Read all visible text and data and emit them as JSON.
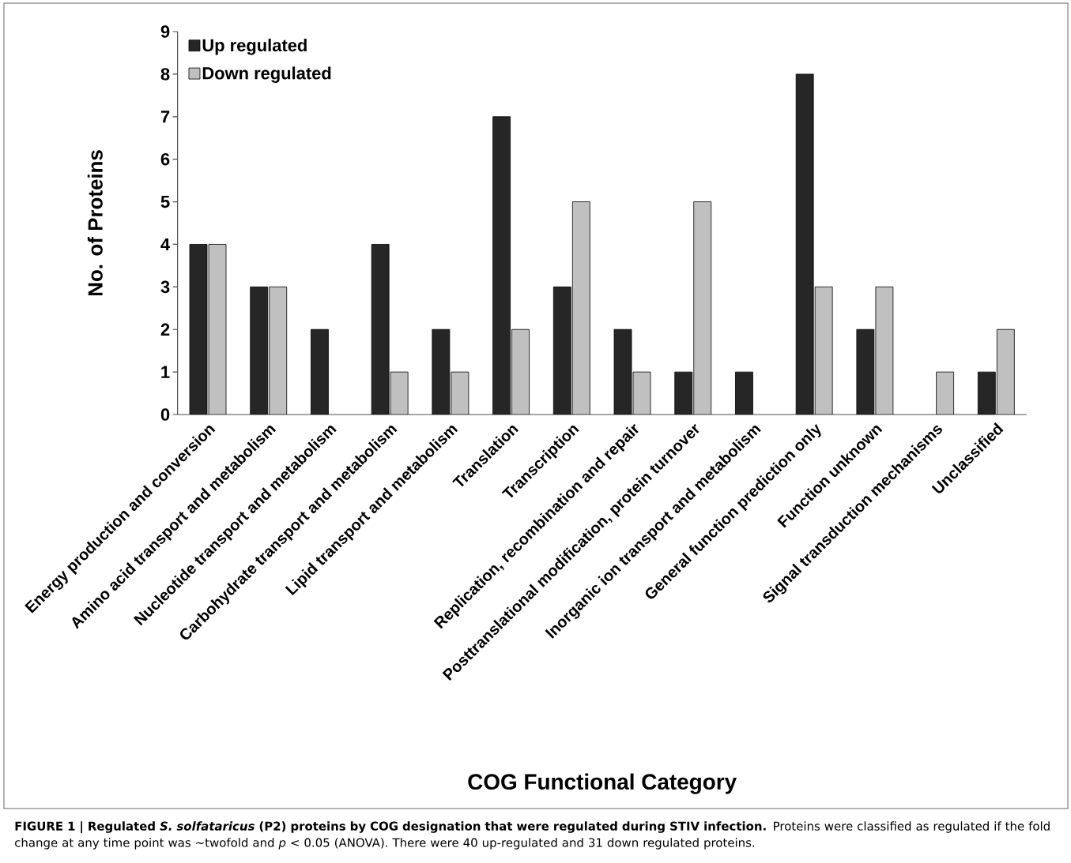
{
  "chart_data": {
    "type": "bar",
    "xlabel": "COG Functional Category",
    "ylabel": "No. of Proteins",
    "categories": [
      "Energy production and conversion",
      "Amino acid transport and metabolism",
      "Nucleotide transport and metabolism",
      "Carbohydrate transport and metabolism",
      "Lipid transport and metabolism",
      "Translation",
      "Transcription",
      "Replication, recombination and repair",
      "Posttranslational modification, protein turnover",
      "Inorganic ion transport and metabolism",
      "General function prediction only",
      "Function unknown",
      "Signal transduction mechanisms",
      "Unclassified"
    ],
    "series": [
      {
        "name": "Up regulated",
        "color": "#262626",
        "values": [
          4,
          3,
          2,
          4,
          2,
          7,
          3,
          2,
          1,
          1,
          8,
          2,
          null,
          1
        ]
      },
      {
        "name": "Down regulated",
        "color": "#c0c0c0",
        "values": [
          4,
          3,
          null,
          1,
          1,
          2,
          5,
          1,
          5,
          null,
          3,
          3,
          1,
          2
        ]
      }
    ],
    "ylim": [
      0,
      9
    ],
    "yticks": [
      0,
      1,
      2,
      3,
      4,
      5,
      6,
      7,
      8,
      9
    ],
    "legend": "top left",
    "annotations": [
      "FIGURE 1 | Regulated *S. solfataricus* (P2) proteins by COG designation that were regulated during STIV infection.",
      "Proteins were classified as regulated if the fold change at any time point was ∼twofold and *p* < 0.05 (ANOVA). There were 40 up-regulated and 31 down regulated proteins."
    ]
  }
}
